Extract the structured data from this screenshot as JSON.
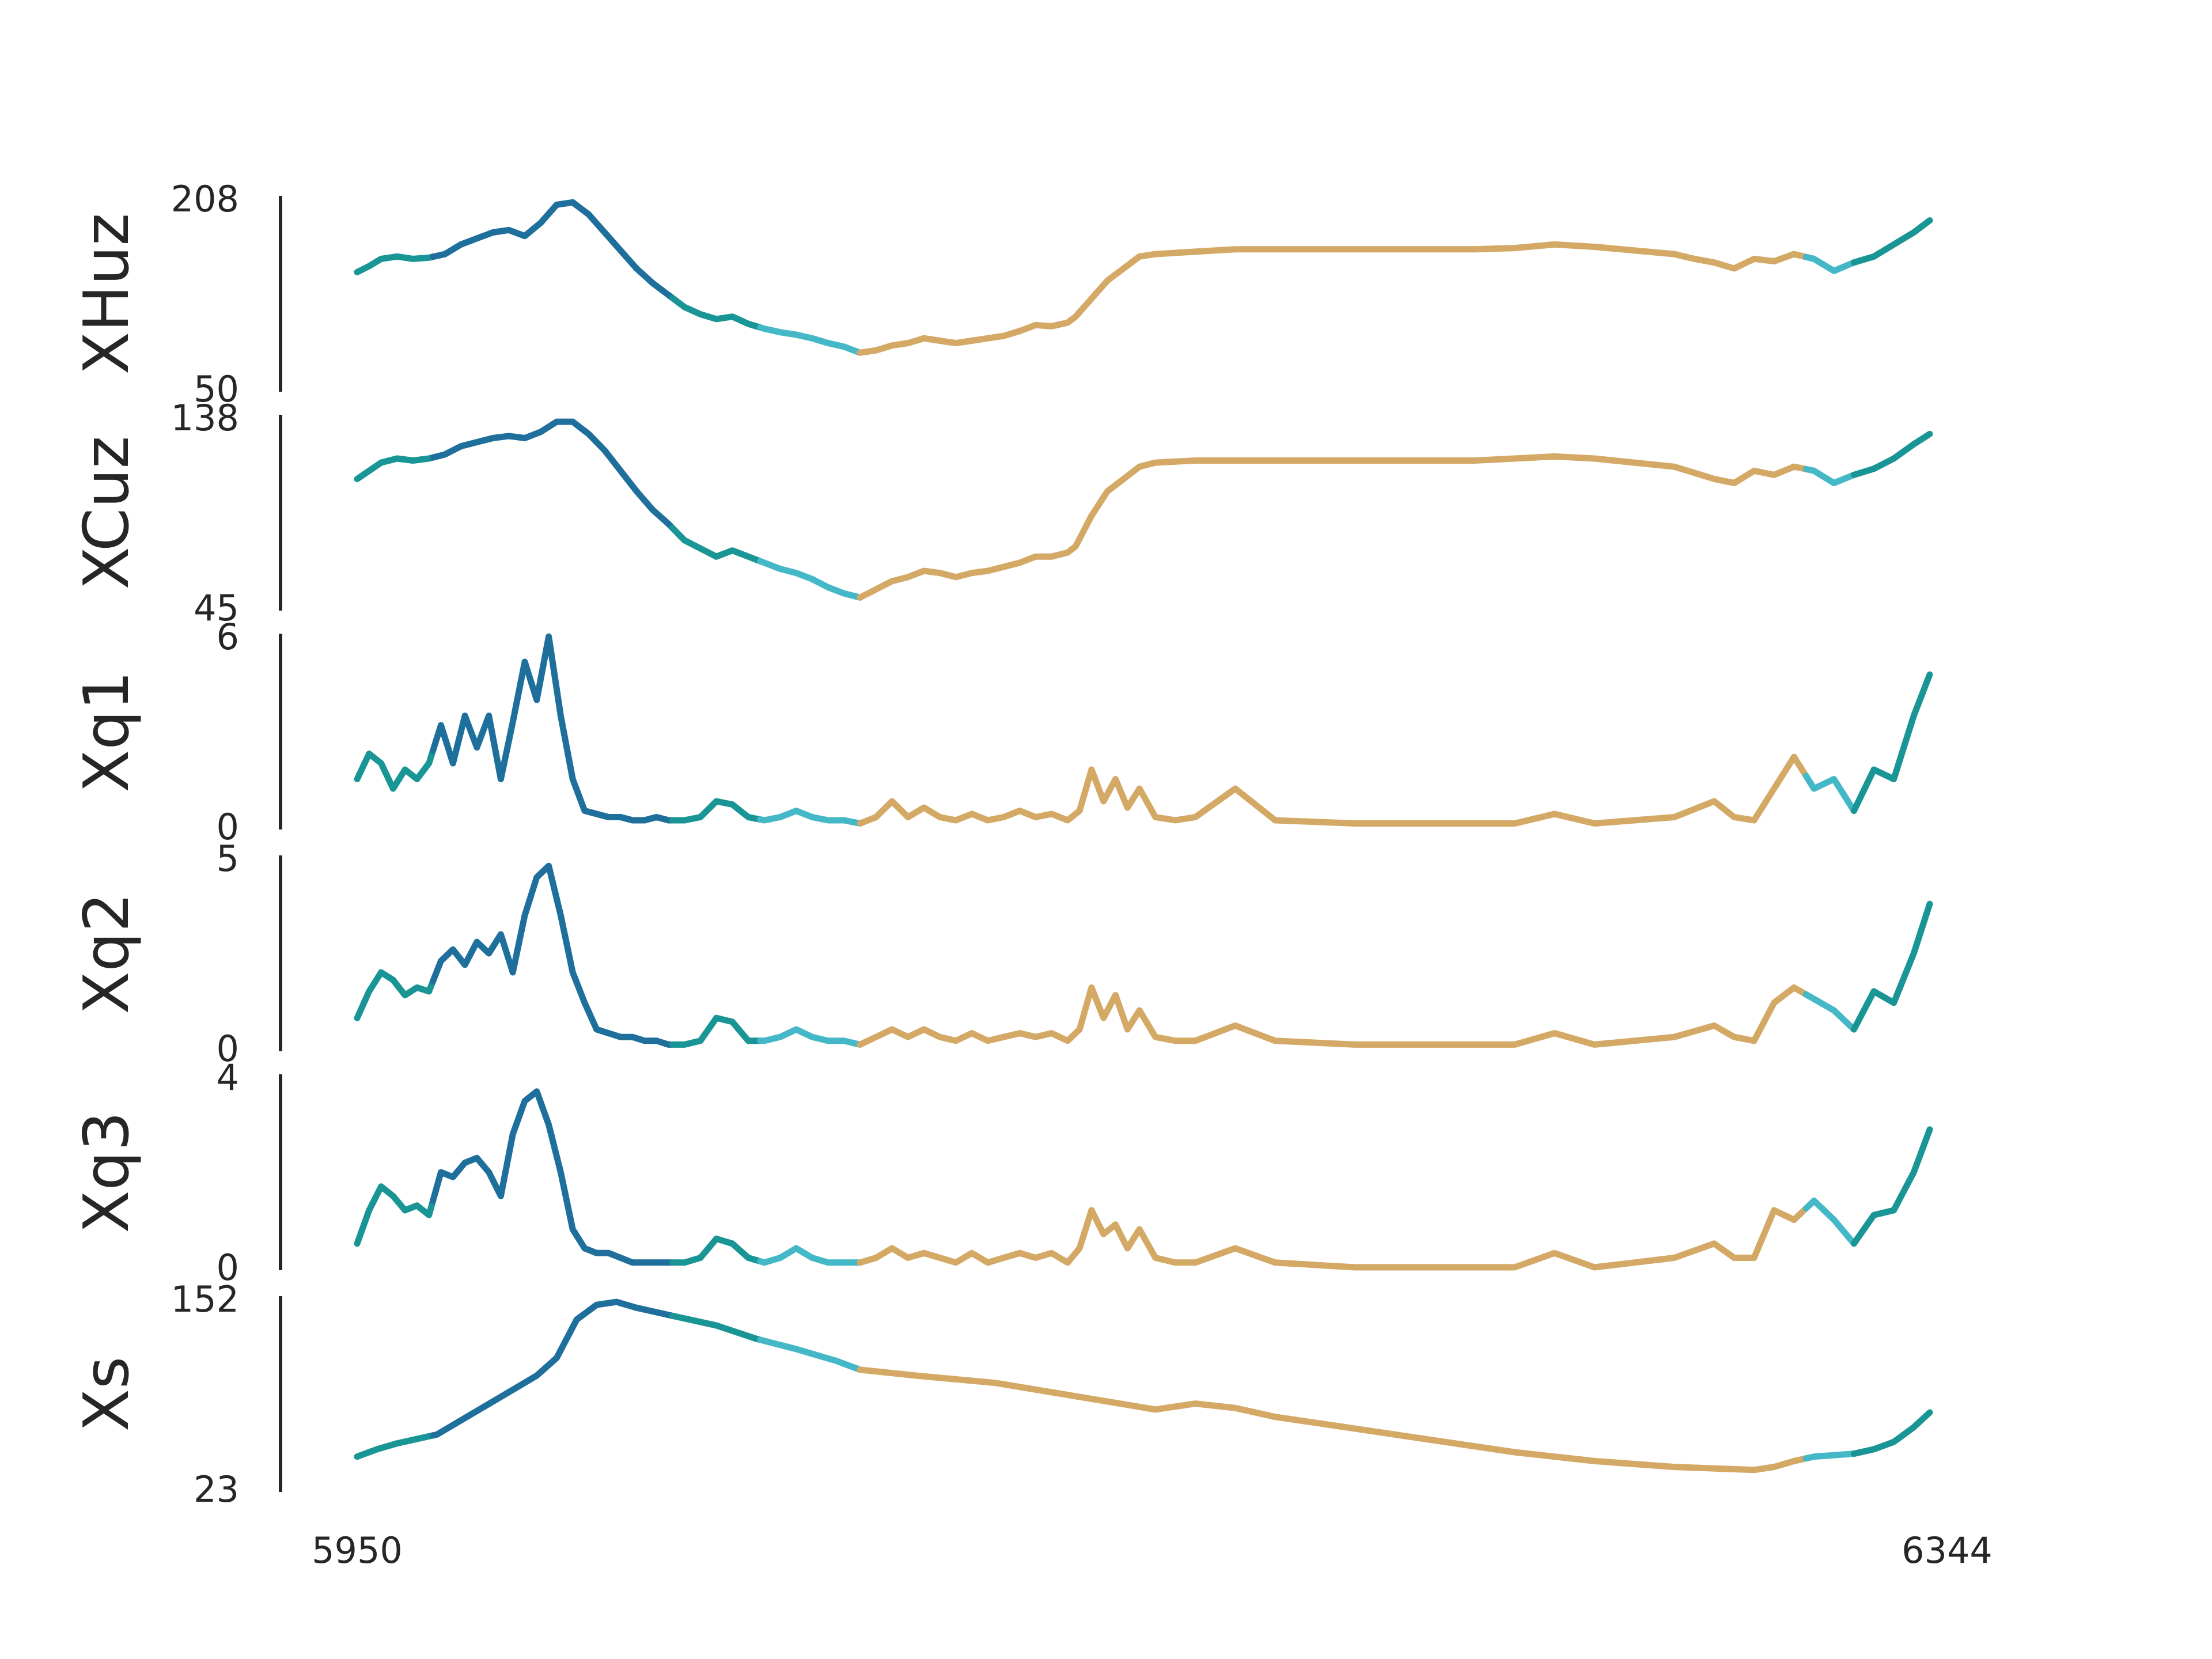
{
  "chart_data": {
    "type": "line",
    "x_ticks": [
      "5950",
      "6344"
    ],
    "xlim": [
      5950,
      6344
    ],
    "segment_colors": {
      "dark_blue": "#1f6f9c",
      "teal": "#1a9595",
      "cyan": "#45b8c8",
      "tan": "#d4a865"
    },
    "segments": [
      {
        "color": "teal",
        "x": [
          5950,
          5969
        ]
      },
      {
        "color": "dark_blue",
        "x": [
          5969,
          6029
        ]
      },
      {
        "color": "teal",
        "x": [
          6029,
          6051
        ]
      },
      {
        "color": "cyan",
        "x": [
          6051,
          6076
        ]
      },
      {
        "color": "tan",
        "x": [
          6076,
          6313
        ]
      },
      {
        "color": "cyan",
        "x": [
          6313,
          6325
        ]
      },
      {
        "color": "teal",
        "x": [
          6325,
          6344
        ]
      }
    ],
    "panels": [
      {
        "ylabel": "XHuz",
        "yticks": [
          "208",
          "50"
        ],
        "ylim": [
          50,
          208
        ],
        "x": [
          5950,
          5953,
          5956,
          5960,
          5964,
          5968,
          5972,
          5976,
          5980,
          5984,
          5988,
          5992,
          5996,
          6000,
          6004,
          6008,
          6012,
          6016,
          6020,
          6024,
          6028,
          6032,
          6036,
          6040,
          6044,
          6048,
          6052,
          6056,
          6060,
          6064,
          6068,
          6072,
          6076,
          6080,
          6084,
          6088,
          6092,
          6096,
          6100,
          6104,
          6108,
          6112,
          6116,
          6120,
          6124,
          6128,
          6130,
          6134,
          6138,
          6142,
          6146,
          6150,
          6160,
          6170,
          6180,
          6190,
          6200,
          6210,
          6220,
          6230,
          6240,
          6250,
          6260,
          6270,
          6280,
          6285,
          6290,
          6295,
          6300,
          6305,
          6310,
          6315,
          6320,
          6325,
          6330,
          6335,
          6340,
          6344
        ],
        "y": [
          147,
          152,
          158,
          160,
          158,
          159,
          162,
          170,
          175,
          180,
          182,
          177,
          188,
          203,
          205,
          195,
          180,
          165,
          150,
          138,
          128,
          118,
          112,
          108,
          110,
          104,
          100,
          97,
          95,
          92,
          88,
          85,
          80,
          82,
          86,
          88,
          92,
          90,
          88,
          90,
          92,
          94,
          98,
          103,
          102,
          105,
          110,
          125,
          140,
          150,
          160,
          162,
          164,
          166,
          166,
          166,
          166,
          166,
          166,
          166,
          167,
          170,
          168,
          165,
          162,
          158,
          155,
          150,
          158,
          156,
          162,
          158,
          148,
          155,
          160,
          170,
          180,
          190
        ]
      },
      {
        "ylabel": "XCuz",
        "yticks": [
          "138",
          "45"
        ],
        "ylim": [
          45,
          138
        ],
        "x": [
          5950,
          5953,
          5956,
          5960,
          5964,
          5968,
          5972,
          5976,
          5980,
          5984,
          5988,
          5992,
          5996,
          6000,
          6004,
          6008,
          6012,
          6016,
          6020,
          6024,
          6028,
          6032,
          6036,
          6040,
          6044,
          6048,
          6052,
          6056,
          6060,
          6064,
          6068,
          6072,
          6076,
          6080,
          6084,
          6088,
          6092,
          6096,
          6100,
          6104,
          6108,
          6112,
          6116,
          6120,
          6124,
          6128,
          6130,
          6134,
          6138,
          6142,
          6146,
          6150,
          6160,
          6170,
          6180,
          6190,
          6200,
          6210,
          6220,
          6230,
          6240,
          6250,
          6260,
          6270,
          6280,
          6285,
          6290,
          6295,
          6300,
          6305,
          6310,
          6315,
          6320,
          6325,
          6330,
          6335,
          6340,
          6344
        ],
        "y": [
          108,
          112,
          116,
          118,
          117,
          118,
          120,
          124,
          126,
          128,
          129,
          128,
          131,
          136,
          136,
          130,
          122,
          112,
          102,
          93,
          86,
          78,
          74,
          70,
          73,
          70,
          67,
          64,
          62,
          59,
          55,
          52,
          50,
          54,
          58,
          60,
          63,
          62,
          60,
          62,
          63,
          65,
          67,
          70,
          70,
          72,
          75,
          90,
          102,
          108,
          114,
          116,
          117,
          117,
          117,
          117,
          117,
          117,
          117,
          117,
          118,
          119,
          118,
          116,
          114,
          111,
          108,
          106,
          112,
          110,
          114,
          112,
          106,
          110,
          113,
          118,
          125,
          130
        ]
      },
      {
        "ylabel": "Xq1",
        "yticks": [
          "6",
          "0"
        ],
        "ylim": [
          0,
          6
        ],
        "x": [
          5950,
          5953,
          5956,
          5959,
          5962,
          5965,
          5968,
          5971,
          5974,
          5977,
          5980,
          5983,
          5986,
          5989,
          5992,
          5995,
          5998,
          6001,
          6004,
          6007,
          6010,
          6013,
          6016,
          6019,
          6022,
          6025,
          6028,
          6032,
          6036,
          6040,
          6044,
          6048,
          6052,
          6056,
          6060,
          6064,
          6068,
          6072,
          6076,
          6080,
          6084,
          6088,
          6092,
          6096,
          6100,
          6104,
          6108,
          6112,
          6116,
          6120,
          6124,
          6128,
          6131,
          6134,
          6137,
          6140,
          6143,
          6146,
          6150,
          6155,
          6160,
          6170,
          6180,
          6200,
          6220,
          6240,
          6250,
          6260,
          6270,
          6280,
          6290,
          6295,
          6300,
          6305,
          6310,
          6315,
          6320,
          6325,
          6330,
          6335,
          6340,
          6344
        ],
        "y": [
          1.5,
          2.3,
          2.0,
          1.2,
          1.8,
          1.5,
          2.0,
          3.2,
          2.0,
          3.5,
          2.5,
          3.5,
          1.5,
          3.3,
          5.2,
          4.0,
          6.0,
          3.5,
          1.5,
          0.5,
          0.4,
          0.3,
          0.3,
          0.2,
          0.2,
          0.3,
          0.2,
          0.2,
          0.3,
          0.8,
          0.7,
          0.3,
          0.2,
          0.3,
          0.5,
          0.3,
          0.2,
          0.2,
          0.1,
          0.3,
          0.8,
          0.3,
          0.6,
          0.3,
          0.2,
          0.4,
          0.2,
          0.3,
          0.5,
          0.3,
          0.4,
          0.2,
          0.5,
          1.8,
          0.8,
          1.5,
          0.6,
          1.2,
          0.3,
          0.2,
          0.3,
          1.2,
          0.2,
          0.1,
          0.1,
          0.1,
          0.4,
          0.1,
          0.2,
          0.3,
          0.8,
          0.3,
          0.2,
          1.2,
          2.2,
          1.2,
          1.5,
          0.5,
          1.8,
          1.5,
          3.5,
          4.8
        ]
      },
      {
        "ylabel": "Xq2",
        "yticks": [
          "5",
          "0"
        ],
        "ylim": [
          0,
          5
        ],
        "x": [
          5950,
          5953,
          5956,
          5959,
          5962,
          5965,
          5968,
          5971,
          5974,
          5977,
          5980,
          5983,
          5986,
          5989,
          5992,
          5995,
          5998,
          6001,
          6004,
          6007,
          6010,
          6013,
          6016,
          6019,
          6022,
          6025,
          6028,
          6032,
          6036,
          6040,
          6044,
          6048,
          6052,
          6056,
          6060,
          6064,
          6068,
          6072,
          6076,
          6080,
          6084,
          6088,
          6092,
          6096,
          6100,
          6104,
          6108,
          6112,
          6116,
          6120,
          6124,
          6128,
          6131,
          6134,
          6137,
          6140,
          6143,
          6146,
          6150,
          6155,
          6160,
          6170,
          6180,
          6200,
          6220,
          6240,
          6250,
          6260,
          6270,
          6280,
          6290,
          6295,
          6300,
          6305,
          6310,
          6315,
          6320,
          6325,
          6330,
          6335,
          6340,
          6344
        ],
        "y": [
          0.8,
          1.5,
          2.0,
          1.8,
          1.4,
          1.6,
          1.5,
          2.3,
          2.6,
          2.2,
          2.8,
          2.5,
          3.0,
          2.0,
          3.5,
          4.5,
          4.8,
          3.5,
          2.0,
          1.2,
          0.5,
          0.4,
          0.3,
          0.3,
          0.2,
          0.2,
          0.1,
          0.1,
          0.2,
          0.8,
          0.7,
          0.2,
          0.2,
          0.3,
          0.5,
          0.3,
          0.2,
          0.2,
          0.1,
          0.3,
          0.5,
          0.3,
          0.5,
          0.3,
          0.2,
          0.4,
          0.2,
          0.3,
          0.4,
          0.3,
          0.4,
          0.2,
          0.5,
          1.6,
          0.8,
          1.4,
          0.5,
          1.0,
          0.3,
          0.2,
          0.2,
          0.6,
          0.2,
          0.1,
          0.1,
          0.1,
          0.4,
          0.1,
          0.2,
          0.3,
          0.6,
          0.3,
          0.2,
          1.2,
          1.6,
          1.3,
          1.0,
          0.5,
          1.5,
          1.2,
          2.5,
          3.8
        ]
      },
      {
        "ylabel": "Xq3",
        "yticks": [
          "4",
          "0"
        ],
        "ylim": [
          0,
          4
        ],
        "x": [
          5950,
          5953,
          5956,
          5959,
          5962,
          5965,
          5968,
          5971,
          5974,
          5977,
          5980,
          5983,
          5986,
          5989,
          5992,
          5995,
          5998,
          6001,
          6004,
          6007,
          6010,
          6013,
          6016,
          6019,
          6022,
          6025,
          6028,
          6032,
          6036,
          6040,
          6044,
          6048,
          6052,
          6056,
          6060,
          6064,
          6068,
          6072,
          6076,
          6080,
          6084,
          6088,
          6092,
          6096,
          6100,
          6104,
          6108,
          6112,
          6116,
          6120,
          6124,
          6128,
          6131,
          6134,
          6137,
          6140,
          6143,
          6146,
          6150,
          6155,
          6160,
          6170,
          6180,
          6200,
          6220,
          6240,
          6250,
          6260,
          6270,
          6280,
          6290,
          6295,
          6300,
          6305,
          6310,
          6315,
          6320,
          6325,
          6330,
          6335,
          6340,
          6344
        ],
        "y": [
          0.5,
          1.2,
          1.7,
          1.5,
          1.2,
          1.3,
          1.1,
          2.0,
          1.9,
          2.2,
          2.3,
          2.0,
          1.5,
          2.8,
          3.5,
          3.7,
          3.0,
          2.0,
          0.8,
          0.4,
          0.3,
          0.3,
          0.2,
          0.1,
          0.1,
          0.1,
          0.1,
          0.1,
          0.2,
          0.6,
          0.5,
          0.2,
          0.1,
          0.2,
          0.4,
          0.2,
          0.1,
          0.1,
          0.1,
          0.2,
          0.4,
          0.2,
          0.3,
          0.2,
          0.1,
          0.3,
          0.1,
          0.2,
          0.3,
          0.2,
          0.3,
          0.1,
          0.4,
          1.2,
          0.7,
          0.9,
          0.4,
          0.8,
          0.2,
          0.1,
          0.1,
          0.4,
          0.1,
          0.0,
          0.0,
          0.0,
          0.3,
          0.0,
          0.1,
          0.2,
          0.5,
          0.2,
          0.2,
          1.2,
          1.0,
          1.4,
          1.0,
          0.5,
          1.1,
          1.2,
          2.0,
          2.9
        ]
      },
      {
        "ylabel": "Xs",
        "yticks": [
          "152",
          "23"
        ],
        "ylim": [
          23,
          152
        ],
        "x": [
          5950,
          5955,
          5960,
          5965,
          5970,
          5975,
          5980,
          5985,
          5990,
          5995,
          6000,
          6005,
          6010,
          6015,
          6020,
          6030,
          6040,
          6050,
          6060,
          6070,
          6076,
          6090,
          6110,
          6130,
          6150,
          6160,
          6170,
          6180,
          6200,
          6220,
          6240,
          6260,
          6280,
          6300,
          6305,
          6310,
          6315,
          6320,
          6325,
          6330,
          6335,
          6340,
          6344
        ],
        "y": [
          45,
          50,
          54,
          57,
          60,
          68,
          76,
          84,
          92,
          100,
          112,
          138,
          148,
          150,
          146,
          140,
          134,
          125,
          118,
          110,
          104,
          100,
          95,
          86,
          77,
          81,
          78,
          72,
          64,
          56,
          48,
          42,
          38,
          36,
          38,
          42,
          45,
          46,
          47,
          50,
          55,
          65,
          75
        ]
      }
    ]
  }
}
